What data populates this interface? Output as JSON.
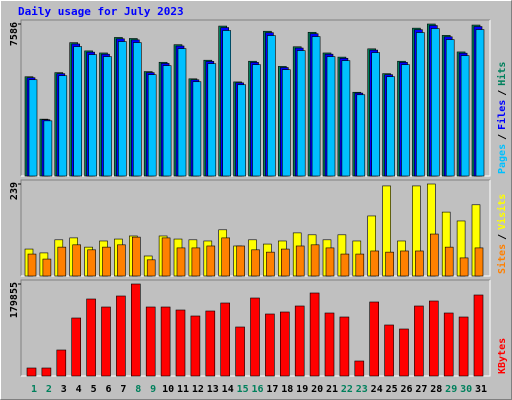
{
  "chart_data": [
    {
      "type": "bar",
      "title": "Daily usage for July 2023",
      "legend_separator": "/",
      "ylim": [
        0,
        7586
      ],
      "yticks": [
        7586
      ],
      "series": [
        {
          "name": "Hits",
          "color": "#00805c",
          "values": [
            4954,
            2838,
            5160,
            6657,
            6244,
            6141,
            6915,
            6863,
            5212,
            5676,
            6554,
            4851,
            5779,
            7483,
            4696,
            5728,
            7225,
            5470,
            6450,
            7173,
            6141,
            5934,
            4180,
            6347,
            5109,
            5728,
            7379,
            7586,
            7018,
            6192,
            7534
          ]
        },
        {
          "name": "Files",
          "color": "#0000ff",
          "values": [
            4904,
            2810,
            5108,
            6590,
            6182,
            6080,
            6846,
            6794,
            5160,
            5619,
            6488,
            4802,
            5721,
            7408,
            4649,
            5671,
            7153,
            5415,
            6386,
            7101,
            6080,
            5875,
            4138,
            6284,
            5058,
            5671,
            7305,
            7510,
            6948,
            6130,
            7459
          ]
        },
        {
          "name": "Pages",
          "color": "#00c0ff",
          "values": [
            4805,
            2753,
            5005,
            6457,
            6057,
            5957,
            6708,
            6657,
            5056,
            5506,
            6357,
            4705,
            5606,
            7259,
            4555,
            5556,
            7008,
            5306,
            6257,
            6958,
            5957,
            5756,
            4055,
            6157,
            4956,
            5556,
            7158,
            7358,
            6807,
            6006,
            7308
          ]
        }
      ]
    },
    {
      "type": "bar",
      "legend_separator": "/",
      "ylim": [
        0,
        239
      ],
      "yticks": [
        239
      ],
      "series": [
        {
          "name": "Visits",
          "color": "#ffff00",
          "values": [
            70,
            60,
            94,
            99,
            75,
            91,
            96,
            104,
            52,
            104,
            96,
            94,
            91,
            120,
            78,
            94,
            83,
            91,
            112,
            107,
            94,
            107,
            91,
            156,
            234,
            91,
            234,
            239,
            166,
            143,
            185
          ]
        },
        {
          "name": "Sites",
          "color": "#ff8000",
          "values": [
            57,
            44,
            75,
            81,
            68,
            75,
            81,
            101,
            42,
            99,
            73,
            73,
            78,
            99,
            78,
            68,
            62,
            70,
            78,
            81,
            73,
            57,
            57,
            65,
            62,
            65,
            65,
            109,
            75,
            47,
            73
          ]
        }
      ]
    },
    {
      "type": "bar",
      "ylim": [
        0,
        179855
      ],
      "yticks": [
        179855
      ],
      "categories": [
        "1",
        "2",
        "3",
        "4",
        "5",
        "6",
        "7",
        "8",
        "9",
        "10",
        "11",
        "12",
        "13",
        "14",
        "15",
        "16",
        "17",
        "18",
        "19",
        "20",
        "21",
        "22",
        "23",
        "24",
        "25",
        "26",
        "27",
        "28",
        "29",
        "30",
        "31"
      ],
      "category_colors": [
        "#00805c",
        "#00805c",
        "#000000",
        "#000000",
        "#000000",
        "#000000",
        "#000000",
        "#00805c",
        "#00805c",
        "#000000",
        "#000000",
        "#000000",
        "#000000",
        "#000000",
        "#00805c",
        "#00805c",
        "#000000",
        "#000000",
        "#000000",
        "#000000",
        "#000000",
        "#00805c",
        "#00805c",
        "#000000",
        "#000000",
        "#000000",
        "#000000",
        "#000000",
        "#00805c",
        "#00805c",
        "#000000"
      ],
      "series": [
        {
          "name": "KBytes",
          "color": "#ff0000",
          "values": [
            15640,
            15640,
            50830,
            113390,
            150535,
            134895,
            156400,
            179855,
            134895,
            134895,
            129030,
            117300,
            127075,
            142715,
            95795,
            152490,
            121210,
            125120,
            136850,
            162265,
            123165,
            115345,
            29325,
            144670,
            99705,
            91885,
            136850,
            146625,
            123165,
            115345,
            158355
          ]
        }
      ]
    }
  ]
}
